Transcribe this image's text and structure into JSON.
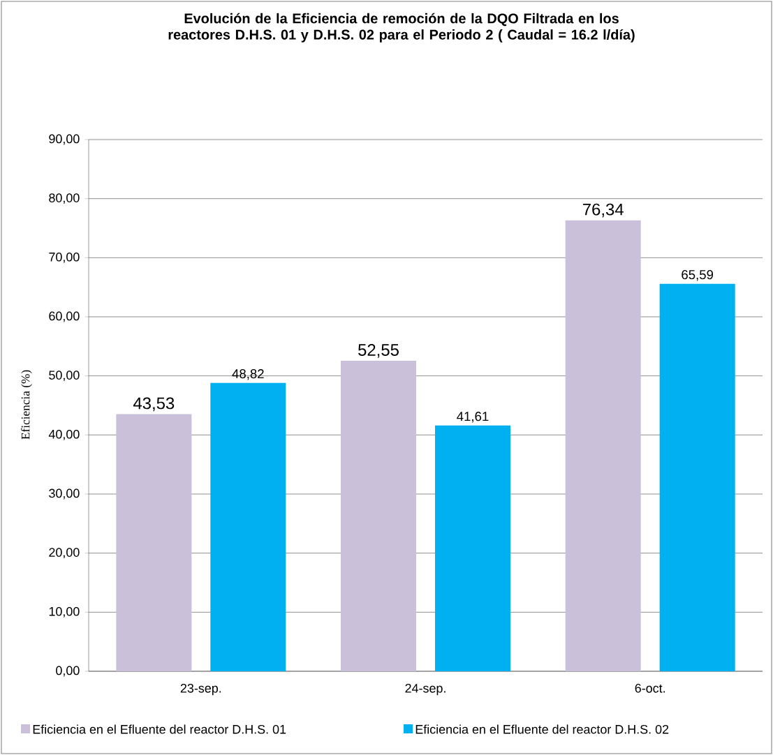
{
  "chart_data": {
    "type": "bar",
    "title": "Evolución de la Eficiencia de remoción de la DQO Filtrada en los reactores D.H.S. 01 y D.H.S. 02  para el Periodo 2 ( Caudal = 16.2 l/día)",
    "ylabel": "Eficiencia (%)",
    "categories": [
      "23-sep.",
      "24-sep.",
      "6-oct."
    ],
    "series": [
      {
        "name": "Eficiencia en el Efluente del reactor  D.H.S. 01",
        "color": "#cbc0da",
        "values": [
          43.53,
          52.55,
          76.34
        ],
        "value_labels": [
          "43,53",
          "52,55",
          "76,34"
        ]
      },
      {
        "name": "Eficiencia en el Efluente del reactor D.H.S. 02",
        "color": "#00b0f0",
        "values": [
          48.82,
          41.61,
          65.59
        ],
        "value_labels": [
          "48,82",
          "41,61",
          "65,59"
        ]
      }
    ],
    "ylim": [
      0,
      90
    ],
    "yticks": [
      {
        "value": 0,
        "label": "0,00"
      },
      {
        "value": 10,
        "label": "10,00"
      },
      {
        "value": 20,
        "label": "20,00"
      },
      {
        "value": 30,
        "label": "30,00"
      },
      {
        "value": 40,
        "label": "40,00"
      },
      {
        "value": 50,
        "label": "50,00"
      },
      {
        "value": 60,
        "label": "60,00"
      },
      {
        "value": 70,
        "label": "70,00"
      },
      {
        "value": 80,
        "label": "80,00"
      },
      {
        "value": 90,
        "label": "90,00"
      }
    ],
    "grid": "y",
    "legend": "bottom"
  }
}
